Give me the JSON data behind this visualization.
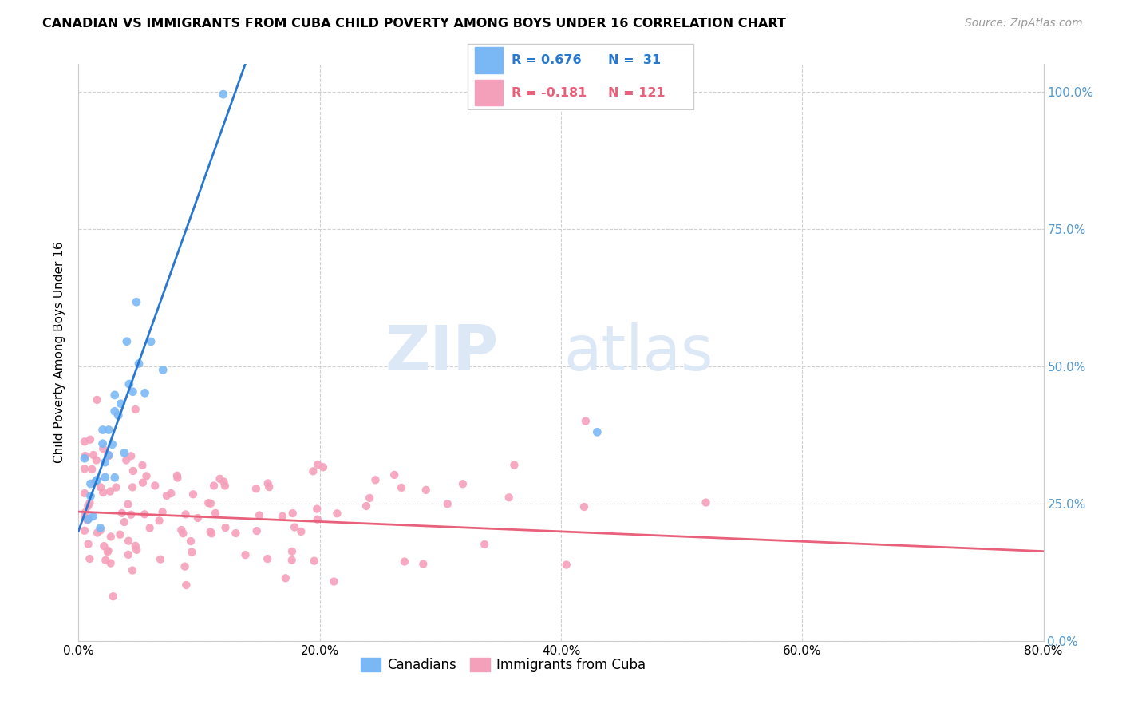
{
  "title": "CANADIAN VS IMMIGRANTS FROM CUBA CHILD POVERTY AMONG BOYS UNDER 16 CORRELATION CHART",
  "source": "Source: ZipAtlas.com",
  "ylabel": "Child Poverty Among Boys Under 16",
  "xmin": 0.0,
  "xmax": 0.8,
  "ymin": 0.0,
  "ymax": 1.05,
  "xtick_values": [
    0.0,
    0.2,
    0.4,
    0.6,
    0.8
  ],
  "xtick_labels": [
    "0.0%",
    "20.0%",
    "40.0%",
    "60.0%",
    "80.0%"
  ],
  "ytick_values": [
    0.0,
    0.25,
    0.5,
    0.75,
    1.0
  ],
  "ytick_labels": [
    "0.0%",
    "25.0%",
    "50.0%",
    "75.0%",
    "100.0%"
  ],
  "canadian_R": 0.676,
  "canadian_N": 31,
  "cuba_R": -0.181,
  "cuba_N": 121,
  "canadian_color": "#7ab8f5",
  "cuba_color": "#f5a0bb",
  "canadian_line_color": "#2878d0",
  "cuba_line_color": "#e8607a",
  "watermark_zip": "ZIP",
  "watermark_atlas": "atlas",
  "watermark_color": "#dce8f5",
  "legend_border_color": "#cccccc",
  "grid_color": "#d0d0d0"
}
